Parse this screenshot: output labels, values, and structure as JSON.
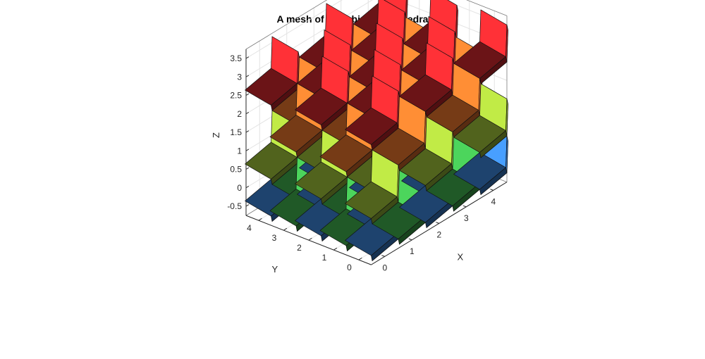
{
  "chart_data": {
    "type": "3d-polyhedron-mesh",
    "title": "A mesh of rhombicDodecahedra",
    "xlabel": "X",
    "ylabel": "Y",
    "zlabel": "Z",
    "x_ticks": [
      "0",
      "1",
      "2",
      "3",
      "4"
    ],
    "y_ticks": [
      "0",
      "1",
      "2",
      "3",
      "4"
    ],
    "z_ticks": [
      "-0.5",
      "0",
      "0.5",
      "1",
      "1.5",
      "2",
      "2.5",
      "3",
      "3.5"
    ],
    "xlim": [
      -0.5,
      4.5
    ],
    "ylim": [
      -0.5,
      4.5
    ],
    "zlim": [
      -0.75,
      3.75
    ],
    "grid": true,
    "layers": [
      {
        "z": 3,
        "parity": 0,
        "color": "#d2282d"
      },
      {
        "z": 2,
        "parity": 1,
        "color": "#e8752c"
      },
      {
        "z": 1,
        "parity": 0,
        "color": "#9fc23a"
      },
      {
        "z": 0,
        "parity": 1,
        "color": "#3fb04c"
      },
      {
        "z": 0,
        "parity": 0,
        "color": "#3b83d8"
      }
    ]
  }
}
